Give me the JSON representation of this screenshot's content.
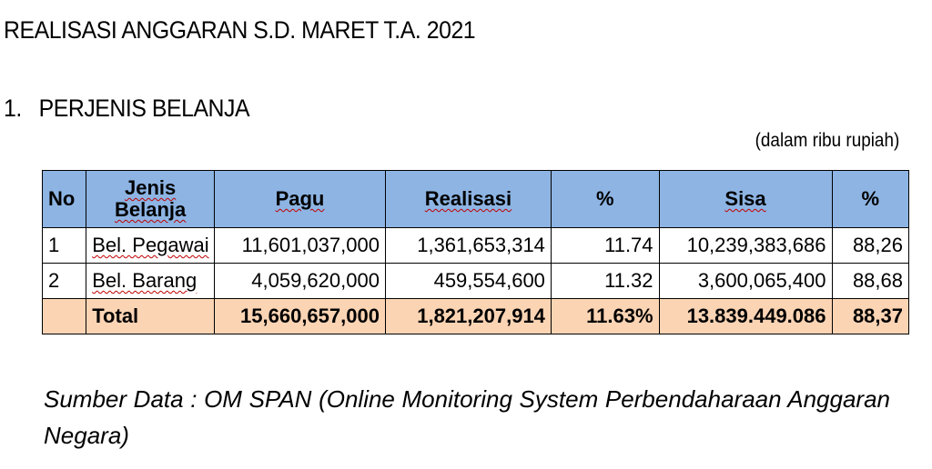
{
  "title": "REALISASI ANGGARAN S.D. MARET T.A. 2021",
  "section": {
    "number": "1.",
    "label": "PERJENIS BELANJA"
  },
  "unit_note": "(dalam ribu rupiah)",
  "table": {
    "headers": {
      "no": "No",
      "jenis_line1": "Jenis",
      "jenis_line2": "Belanja",
      "pagu": "Pagu",
      "realisasi": "Realisasi",
      "pct_realisasi": "%",
      "sisa": "Sisa",
      "pct_sisa": "%"
    },
    "rows": [
      {
        "no": "1",
        "jenis": "Bel. Pegawai",
        "pagu": "11,601,037,000",
        "realisasi": "1,361,653,314",
        "pct_realisasi": "11.74",
        "sisa": "10,239,383,686",
        "pct_sisa": "88,26"
      },
      {
        "no": "2",
        "jenis": "Bel. Barang",
        "pagu": "4,059,620,000",
        "realisasi": "459,554,600",
        "pct_realisasi": "11.32",
        "sisa": "3,600,065,400",
        "pct_sisa": "88,68"
      }
    ],
    "total": {
      "no": "",
      "jenis": "Total",
      "pagu": "15,660,657,000",
      "realisasi": "1,821,207,914",
      "pct_realisasi": "11.63%",
      "sisa": "13.839.449.086",
      "pct_sisa": "88,37"
    }
  },
  "source": {
    "line1": "Sumber Data :   OM SPAN (Online Monitoring System Perbendaharaan Anggaran",
    "line2": "Negara)"
  },
  "colors": {
    "header_bg": "#8db4e3",
    "total_bg": "#fbd4b4",
    "spellcheck_underline": "#c00000"
  }
}
